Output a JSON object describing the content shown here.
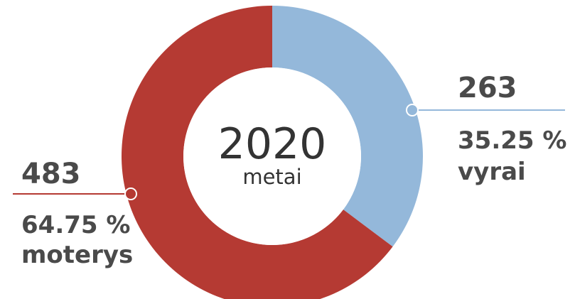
{
  "chart_data": {
    "type": "pie",
    "center_title": "2020",
    "center_subtitle": "metai",
    "slices": [
      {
        "key": "women",
        "count": "483",
        "percent": "64.75 %",
        "label": "moterys",
        "value": 64.75,
        "color": "#b53a33"
      },
      {
        "key": "men",
        "count": "263",
        "percent": "35.25 %",
        "label": "vyrai",
        "value": 35.25,
        "color": "#94b8da"
      }
    ]
  }
}
